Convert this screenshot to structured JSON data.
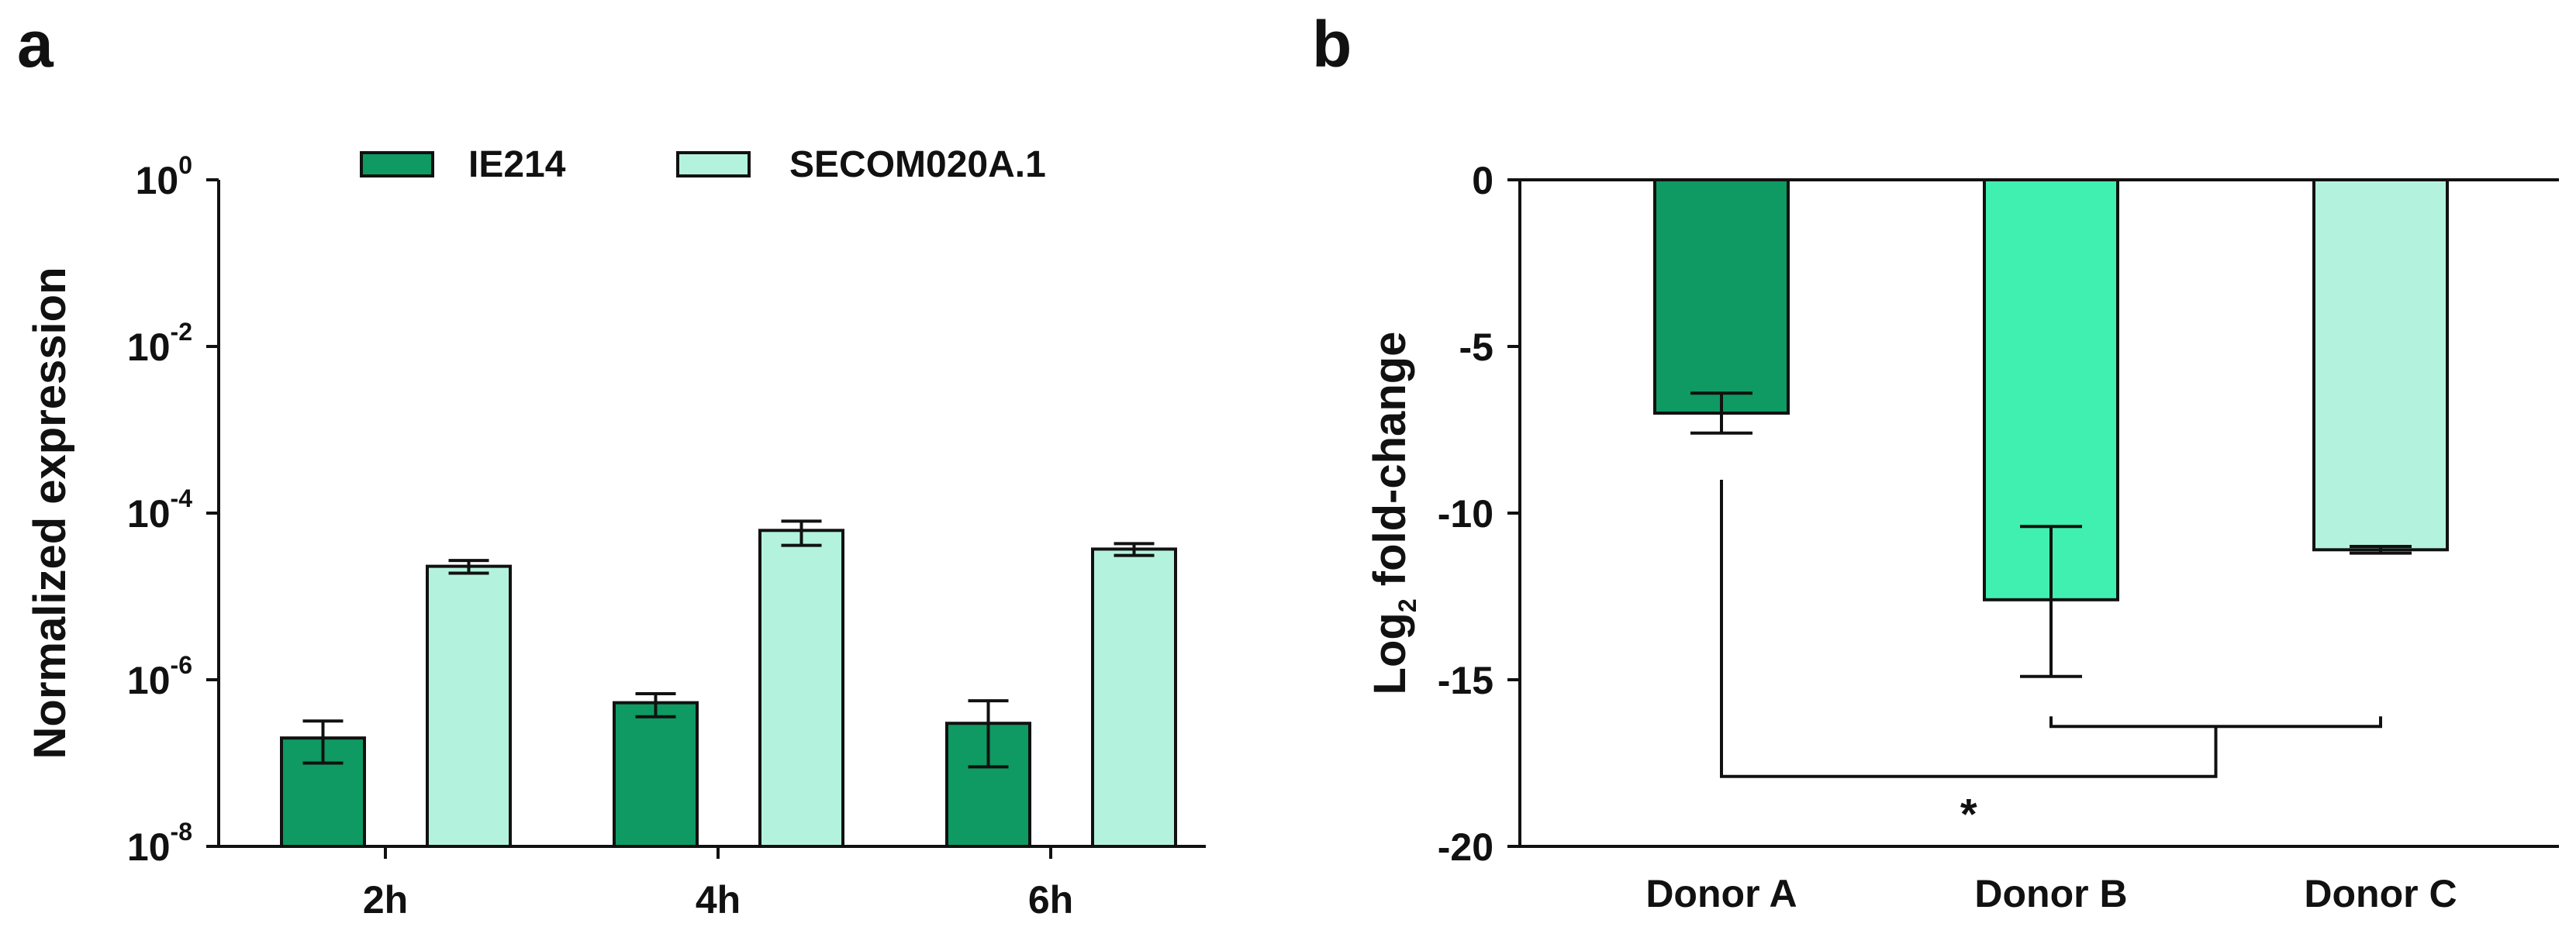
{
  "panels": {
    "a": {
      "letter": "a"
    },
    "b": {
      "letter": "b"
    }
  },
  "chart_data": [
    {
      "type": "bar",
      "panel": "a",
      "scale": "log10",
      "ylabel": "Normalized expression",
      "ylim": [
        1e-08,
        1
      ],
      "yticks": [
        {
          "base": "10",
          "exp": "0"
        },
        {
          "base": "10",
          "exp": "-2"
        },
        {
          "base": "10",
          "exp": "-4"
        },
        {
          "base": "10",
          "exp": "-6"
        },
        {
          "base": "10",
          "exp": "-8"
        }
      ],
      "ytick_values": [
        1,
        0.01,
        0.0001,
        1e-06,
        1e-08
      ],
      "categories": [
        "2h",
        "4h",
        "6h"
      ],
      "legend_position": "top",
      "series": [
        {
          "name": "IE214",
          "color": "#0e9a62",
          "values": [
            2e-07,
            5.3e-07,
            3e-07
          ],
          "err_low": [
            1e-07,
            3.6e-07,
            9e-08
          ],
          "err_high": [
            3.2e-07,
            6.8e-07,
            5.6e-07
          ]
        },
        {
          "name": "SECOM020A.1",
          "color": "#b3f3dd",
          "values": [
            2.3e-05,
            6.2e-05,
            3.7e-05
          ],
          "err_low": [
            1.9e-05,
            4.1e-05,
            3.1e-05
          ],
          "err_high": [
            2.7e-05,
            8e-05,
            4.3e-05
          ]
        }
      ]
    },
    {
      "type": "bar",
      "panel": "b",
      "ylabel_main": "Log",
      "ylabel_sub": "2",
      "ylabel_rest": " fold-change",
      "ylim": [
        -20,
        0
      ],
      "yticks": [
        0,
        -5,
        -10,
        -15,
        -20
      ],
      "ytick_labels": [
        "0",
        "-5",
        "-10",
        "-15",
        "-20"
      ],
      "categories": [
        "Donor A",
        "Donor B",
        "Donor C"
      ],
      "colors": [
        "#0e9a62",
        "#40f0b0",
        "#b3f3dd"
      ],
      "values": [
        -7.0,
        -12.6,
        -11.1
      ],
      "err_low": [
        -7.6,
        -14.9,
        -11.2
      ],
      "err_high": [
        -6.4,
        -10.4,
        -11.0
      ],
      "significance": {
        "label": "*",
        "between": [
          "Donor A",
          "Donor B–Donor C"
        ]
      }
    }
  ]
}
